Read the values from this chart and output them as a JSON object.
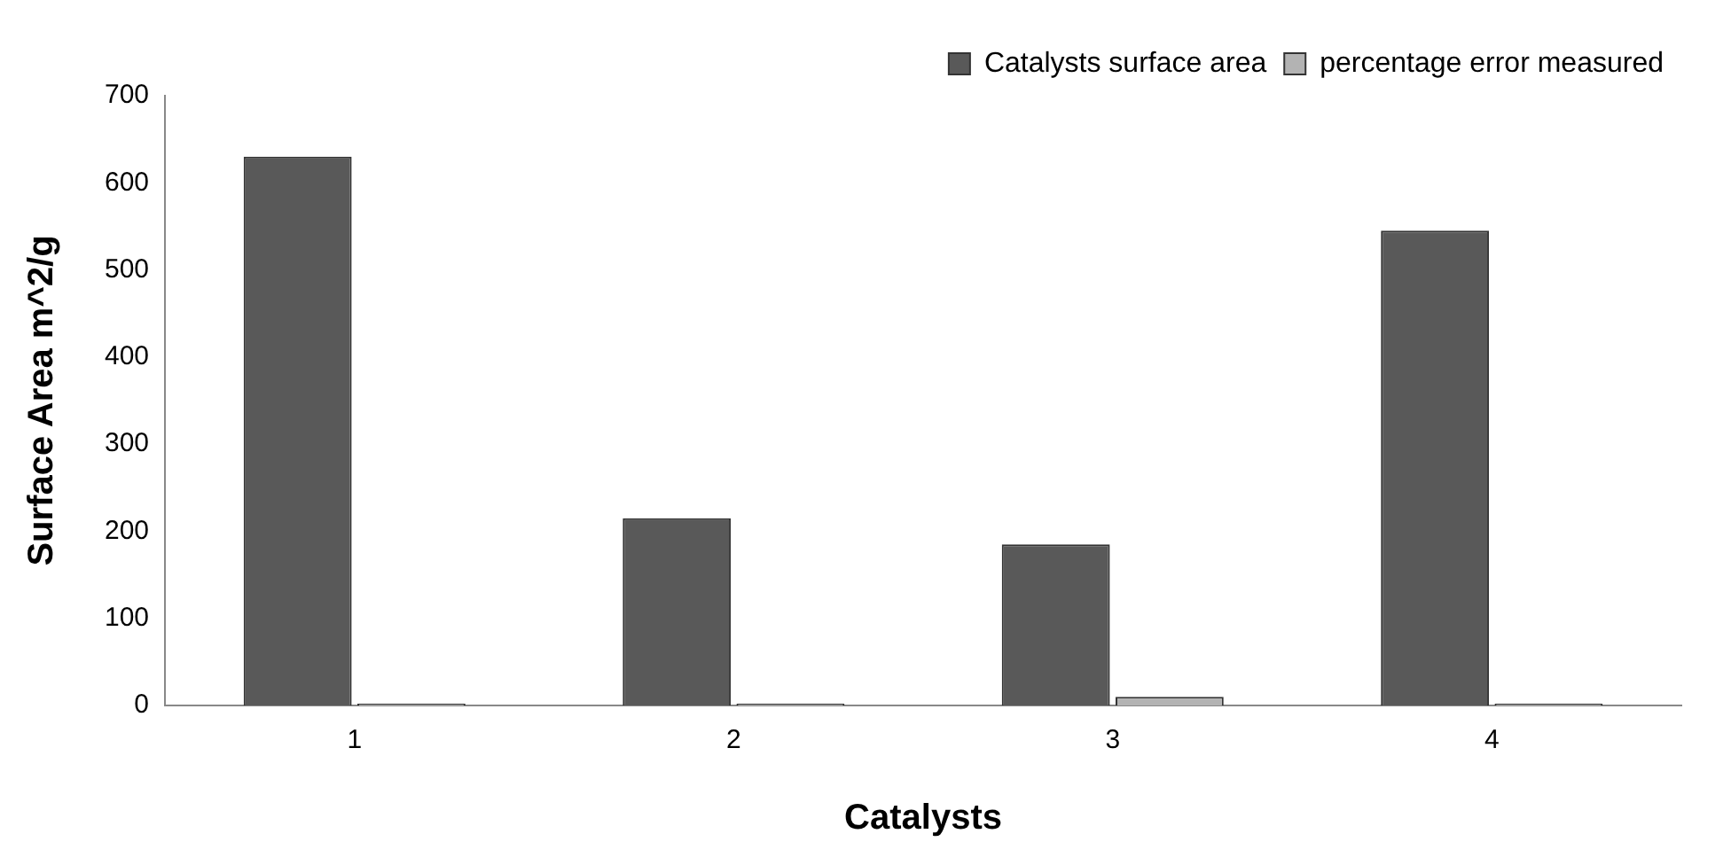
{
  "chart_data": {
    "type": "bar",
    "xlabel": "Catalysts",
    "ylabel": "Surface Area m^2/g",
    "categories": [
      "1",
      "2",
      "3",
      "4"
    ],
    "series": [
      {
        "name": "Catalysts surface area",
        "color": "#595959",
        "values": [
          630,
          215,
          185,
          545
        ]
      },
      {
        "name": "percentage error measured",
        "color": "#b3b3b3",
        "values": [
          2,
          2,
          10,
          2
        ]
      }
    ],
    "ylim": [
      0,
      700
    ],
    "yticks": [
      0,
      100,
      200,
      300,
      400,
      500,
      600,
      700
    ],
    "grid": false,
    "legend": "top right"
  }
}
